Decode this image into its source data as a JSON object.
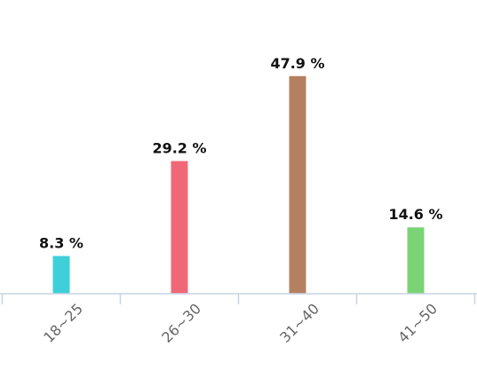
{
  "chart_data": {
    "type": "bar",
    "categories": [
      "18~25",
      "26~30",
      "31~40",
      "41~50"
    ],
    "values": [
      8.3,
      29.2,
      47.9,
      14.6
    ],
    "value_labels": [
      "8.3 %",
      "29.2 %",
      "47.9 %",
      "14.6 %"
    ],
    "colors": [
      "#3ecfd9",
      "#f06878",
      "#b5805f",
      "#7ad475"
    ],
    "ylim": [
      0,
      50
    ],
    "grid": false,
    "legend": "none",
    "title": "",
    "xlabel": "",
    "ylabel": ""
  }
}
